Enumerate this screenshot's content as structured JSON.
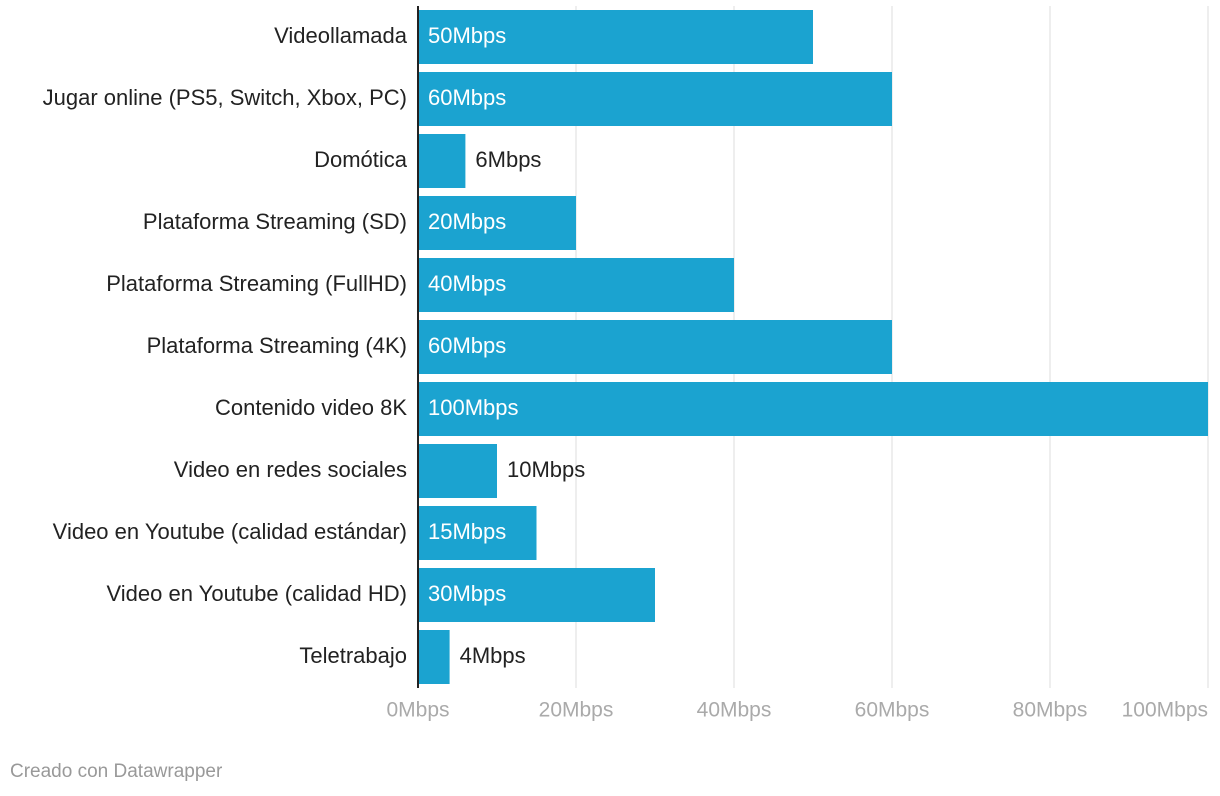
{
  "chart_data": {
    "type": "bar",
    "orientation": "horizontal",
    "categories": [
      "Videollamada",
      "Jugar online (PS5, Switch, Xbox, PC)",
      "Domótica",
      "Plataforma Streaming (SD)",
      "Plataforma Streaming (FullHD)",
      "Plataforma Streaming (4K)",
      "Contenido video 8K",
      "Video en redes sociales",
      "Video en Youtube (calidad estándar)",
      "Video en Youtube (calidad HD)",
      "Teletrabajo"
    ],
    "values": [
      50,
      60,
      6,
      20,
      40,
      60,
      100,
      10,
      15,
      30,
      4
    ],
    "value_labels": [
      "50Mbps",
      "60Mbps",
      "6Mbps",
      "20Mbps",
      "40Mbps",
      "60Mbps",
      "100Mbps",
      "10Mbps",
      "15Mbps",
      "30Mbps",
      "4Mbps"
    ],
    "color": "#1ba3d0",
    "xlim": [
      0,
      100
    ],
    "xticks": [
      {
        "value": 0,
        "label": "0Mbps"
      },
      {
        "value": 20,
        "label": "20Mbps"
      },
      {
        "value": 40,
        "label": "40Mbps"
      },
      {
        "value": 60,
        "label": "60Mbps"
      },
      {
        "value": 80,
        "label": "80Mbps"
      },
      {
        "value": 100,
        "label": "100Mbps"
      }
    ],
    "grid": true,
    "footer": "Creado con Datawrapper"
  }
}
